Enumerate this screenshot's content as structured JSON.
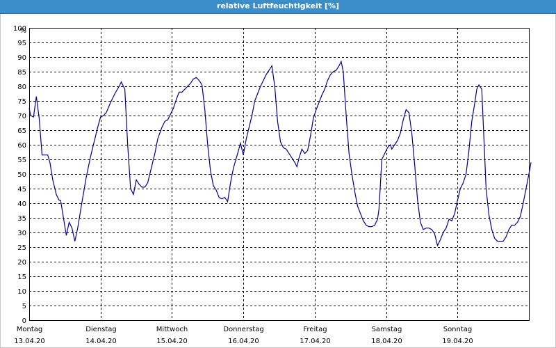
{
  "window": {
    "title": "relative Luftfeuchtigkeit [%]"
  },
  "chart_data": {
    "type": "line",
    "title": "relative Luftfeuchtigkeit [%]",
    "yunit": "%",
    "ylim": [
      0,
      100
    ],
    "yticks": [
      0,
      5,
      10,
      15,
      20,
      25,
      30,
      35,
      40,
      45,
      50,
      55,
      60,
      65,
      70,
      75,
      80,
      85,
      90,
      95,
      100
    ],
    "xlim": [
      0,
      7
    ],
    "grid": true,
    "line_color": "#00008b",
    "days": [
      {
        "name": "Montag",
        "date": "13.04.20"
      },
      {
        "name": "Dienstag",
        "date": "14.04.20"
      },
      {
        "name": "Mittwoch",
        "date": "15.04.20"
      },
      {
        "name": "Donnerstag",
        "date": "16.04.20"
      },
      {
        "name": "Freitag",
        "date": "17.04.20"
      },
      {
        "name": "Samstag",
        "date": "18.04.20"
      },
      {
        "name": "Sonntag",
        "date": "19.04.20"
      }
    ],
    "series": [
      {
        "x_unit": "days since 13.04.20 00:00",
        "points": [
          [
            0.0,
            72.5
          ],
          [
            0.02,
            70
          ],
          [
            0.06,
            69.5
          ],
          [
            0.1,
            76.5
          ],
          [
            0.14,
            69
          ],
          [
            0.18,
            56.5
          ],
          [
            0.26,
            56.5
          ],
          [
            0.29,
            54
          ],
          [
            0.33,
            48
          ],
          [
            0.38,
            43
          ],
          [
            0.42,
            41
          ],
          [
            0.44,
            41
          ],
          [
            0.48,
            35
          ],
          [
            0.52,
            29
          ],
          [
            0.56,
            33.5
          ],
          [
            0.6,
            31.5
          ],
          [
            0.64,
            27
          ],
          [
            0.68,
            31.5
          ],
          [
            0.74,
            40.5
          ],
          [
            0.8,
            49
          ],
          [
            0.86,
            56
          ],
          [
            0.92,
            62
          ],
          [
            0.96,
            66
          ],
          [
            1.0,
            69.5
          ],
          [
            1.04,
            70
          ],
          [
            1.08,
            71
          ],
          [
            1.14,
            74.5
          ],
          [
            1.2,
            77.5
          ],
          [
            1.26,
            80
          ],
          [
            1.29,
            81.5
          ],
          [
            1.34,
            79
          ],
          [
            1.38,
            60
          ],
          [
            1.42,
            45
          ],
          [
            1.46,
            43
          ],
          [
            1.5,
            48
          ],
          [
            1.54,
            46.5
          ],
          [
            1.58,
            45.5
          ],
          [
            1.62,
            45.5
          ],
          [
            1.66,
            47
          ],
          [
            1.7,
            51
          ],
          [
            1.76,
            57
          ],
          [
            1.8,
            62
          ],
          [
            1.86,
            66
          ],
          [
            1.9,
            68
          ],
          [
            1.94,
            68.5
          ],
          [
            1.98,
            70.5
          ],
          [
            2.02,
            72.5
          ],
          [
            2.06,
            75.5
          ],
          [
            2.1,
            78
          ],
          [
            2.14,
            78
          ],
          [
            2.18,
            79
          ],
          [
            2.22,
            80
          ],
          [
            2.26,
            81
          ],
          [
            2.3,
            82.5
          ],
          [
            2.34,
            83
          ],
          [
            2.38,
            82
          ],
          [
            2.42,
            80.5
          ],
          [
            2.46,
            72
          ],
          [
            2.5,
            60
          ],
          [
            2.54,
            51
          ],
          [
            2.58,
            46
          ],
          [
            2.62,
            44.5
          ],
          [
            2.66,
            42
          ],
          [
            2.7,
            41.5
          ],
          [
            2.74,
            42
          ],
          [
            2.78,
            40.5
          ],
          [
            2.82,
            47
          ],
          [
            2.86,
            52
          ],
          [
            2.92,
            57
          ],
          [
            2.96,
            60.5
          ],
          [
            3.0,
            56.5
          ],
          [
            3.04,
            62
          ],
          [
            3.08,
            66
          ],
          [
            3.12,
            70
          ],
          [
            3.16,
            75
          ],
          [
            3.2,
            77.5
          ],
          [
            3.24,
            80
          ],
          [
            3.28,
            82
          ],
          [
            3.32,
            84
          ],
          [
            3.36,
            85.5
          ],
          [
            3.4,
            87
          ],
          [
            3.44,
            80
          ],
          [
            3.48,
            68
          ],
          [
            3.52,
            61
          ],
          [
            3.56,
            59
          ],
          [
            3.6,
            58.5
          ],
          [
            3.64,
            57
          ],
          [
            3.68,
            55.5
          ],
          [
            3.72,
            54
          ],
          [
            3.75,
            52.5
          ],
          [
            3.78,
            55.5
          ],
          [
            3.82,
            58.5
          ],
          [
            3.86,
            57
          ],
          [
            3.9,
            58
          ],
          [
            3.94,
            63
          ],
          [
            3.98,
            69
          ],
          [
            4.02,
            72
          ],
          [
            4.06,
            74.5
          ],
          [
            4.1,
            77
          ],
          [
            4.14,
            79
          ],
          [
            4.18,
            82
          ],
          [
            4.22,
            84
          ],
          [
            4.26,
            85
          ],
          [
            4.3,
            85.5
          ],
          [
            4.34,
            87
          ],
          [
            4.37,
            88.5
          ],
          [
            4.4,
            85
          ],
          [
            4.44,
            70
          ],
          [
            4.48,
            57
          ],
          [
            4.52,
            50
          ],
          [
            4.56,
            44
          ],
          [
            4.6,
            39
          ],
          [
            4.64,
            36.5
          ],
          [
            4.68,
            34
          ],
          [
            4.72,
            32.5
          ],
          [
            4.76,
            32
          ],
          [
            4.8,
            32
          ],
          [
            4.84,
            32.5
          ],
          [
            4.88,
            34.5
          ],
          [
            4.9,
            38
          ],
          [
            4.94,
            55
          ],
          [
            4.98,
            57
          ],
          [
            5.02,
            59
          ],
          [
            5.06,
            60
          ],
          [
            5.08,
            58.5
          ],
          [
            5.12,
            60
          ],
          [
            5.16,
            61.5
          ],
          [
            5.2,
            64
          ],
          [
            5.24,
            68.5
          ],
          [
            5.28,
            72
          ],
          [
            5.32,
            71
          ],
          [
            5.36,
            64
          ],
          [
            5.4,
            53
          ],
          [
            5.44,
            41
          ],
          [
            5.48,
            33.5
          ],
          [
            5.52,
            31
          ],
          [
            5.56,
            31.5
          ],
          [
            5.6,
            31.5
          ],
          [
            5.64,
            31
          ],
          [
            5.68,
            29.5
          ],
          [
            5.72,
            25.5
          ],
          [
            5.76,
            27.5
          ],
          [
            5.8,
            30
          ],
          [
            5.84,
            31.5
          ],
          [
            5.88,
            34.5
          ],
          [
            5.92,
            34
          ],
          [
            5.96,
            36.5
          ],
          [
            6.0,
            41
          ],
          [
            6.04,
            45
          ],
          [
            6.08,
            47
          ],
          [
            6.12,
            50
          ],
          [
            6.16,
            58
          ],
          [
            6.2,
            68
          ],
          [
            6.24,
            74
          ],
          [
            6.27,
            79
          ],
          [
            6.3,
            80.5
          ],
          [
            6.34,
            79
          ],
          [
            6.37,
            62
          ],
          [
            6.4,
            45
          ],
          [
            6.44,
            36
          ],
          [
            6.48,
            31
          ],
          [
            6.52,
            28
          ],
          [
            6.56,
            27
          ],
          [
            6.6,
            27
          ],
          [
            6.64,
            27
          ],
          [
            6.68,
            28.5
          ],
          [
            6.72,
            31
          ],
          [
            6.76,
            32.5
          ],
          [
            6.8,
            32.5
          ],
          [
            6.84,
            33.5
          ],
          [
            6.88,
            35.5
          ],
          [
            6.92,
            40
          ],
          [
            6.96,
            45
          ],
          [
            7.0,
            50
          ],
          [
            7.03,
            54
          ]
        ]
      }
    ]
  }
}
